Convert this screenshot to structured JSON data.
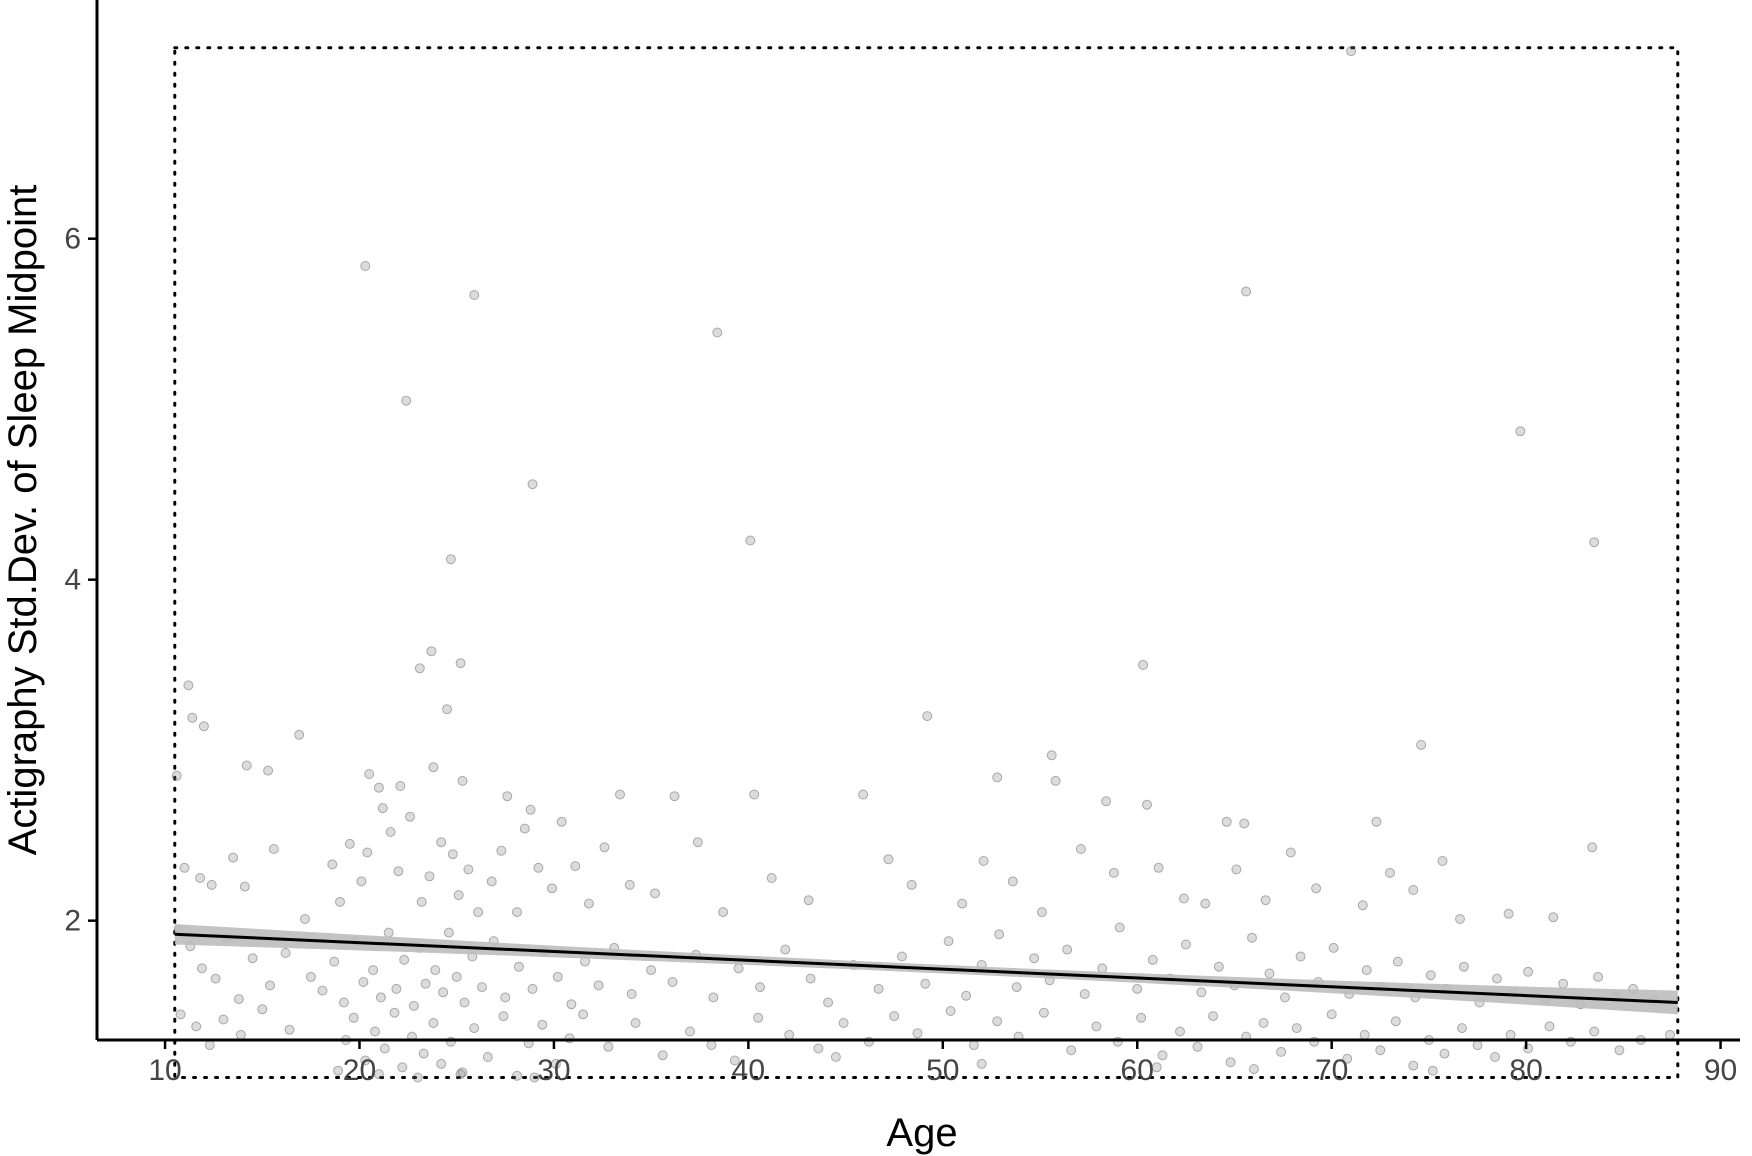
{
  "chart_data": {
    "type": "scatter",
    "title": "",
    "xlabel": "Age",
    "ylabel": "Actigraphy Std.Dev. of Sleep Midpoint",
    "xlim": [
      6.5,
      91
    ],
    "ylim": [
      1.3,
      7.4
    ],
    "x_ticks": [
      10,
      20,
      30,
      40,
      50,
      60,
      70,
      80,
      90
    ],
    "y_ticks": [
      2,
      4,
      6
    ],
    "grid": false,
    "legend": "none",
    "colors": {
      "points": "#808080",
      "points_stroke": "#555555",
      "fit_line": "#000000",
      "confidence_band": "#bdbdbd",
      "axis": "#000000",
      "tick_label": "#444444",
      "dotted_box": "#000000"
    },
    "regression": {
      "x": [
        10.5,
        87.8
      ],
      "y": [
        1.92,
        1.52
      ],
      "ci_halfwidth_ends": [
        0.06,
        0.07
      ],
      "ci_halfwidth_mid": 0.025
    },
    "reference_box": {
      "x": [
        10.5,
        87.8
      ],
      "y": [
        1.08,
        7.12
      ]
    },
    "points": [
      [
        20.3,
        5.84
      ],
      [
        25.9,
        5.67
      ],
      [
        22.4,
        5.05
      ],
      [
        38.4,
        5.45
      ],
      [
        65.6,
        5.69
      ],
      [
        79.7,
        4.87
      ],
      [
        40.1,
        4.23
      ],
      [
        28.9,
        4.56
      ],
      [
        24.7,
        4.12
      ],
      [
        83.5,
        4.22
      ],
      [
        71.0,
        7.1
      ],
      [
        23.7,
        3.58
      ],
      [
        25.2,
        3.51
      ],
      [
        24.5,
        3.24
      ],
      [
        23.1,
        3.48
      ],
      [
        11.2,
        3.38
      ],
      [
        11.4,
        3.19
      ],
      [
        12.0,
        3.14
      ],
      [
        16.9,
        3.09
      ],
      [
        60.3,
        3.5
      ],
      [
        49.2,
        3.2
      ],
      [
        55.6,
        2.97
      ],
      [
        74.6,
        3.03
      ],
      [
        14.2,
        2.91
      ],
      [
        15.3,
        2.88
      ],
      [
        20.5,
        2.86
      ],
      [
        21.0,
        2.78
      ],
      [
        22.1,
        2.79
      ],
      [
        23.8,
        2.9
      ],
      [
        25.3,
        2.82
      ],
      [
        27.6,
        2.73
      ],
      [
        28.8,
        2.65
      ],
      [
        33.4,
        2.74
      ],
      [
        36.2,
        2.73
      ],
      [
        40.3,
        2.74
      ],
      [
        45.9,
        2.74
      ],
      [
        52.8,
        2.84
      ],
      [
        55.8,
        2.82
      ],
      [
        58.4,
        2.7
      ],
      [
        60.5,
        2.68
      ],
      [
        64.6,
        2.58
      ],
      [
        65.5,
        2.57
      ],
      [
        72.3,
        2.58
      ],
      [
        10.6,
        2.85
      ],
      [
        11.0,
        2.31
      ],
      [
        11.8,
        2.25
      ],
      [
        12.4,
        2.21
      ],
      [
        13.5,
        2.37
      ],
      [
        14.1,
        2.2
      ],
      [
        15.6,
        2.42
      ],
      [
        17.2,
        2.01
      ],
      [
        18.6,
        2.33
      ],
      [
        19.0,
        2.11
      ],
      [
        19.5,
        2.45
      ],
      [
        20.1,
        2.23
      ],
      [
        20.4,
        2.4
      ],
      [
        21.2,
        2.66
      ],
      [
        21.6,
        2.52
      ],
      [
        22.0,
        2.29
      ],
      [
        22.6,
        2.61
      ],
      [
        23.2,
        2.11
      ],
      [
        23.6,
        2.26
      ],
      [
        24.2,
        2.46
      ],
      [
        24.8,
        2.39
      ],
      [
        25.1,
        2.15
      ],
      [
        25.6,
        2.3
      ],
      [
        26.1,
        2.05
      ],
      [
        26.8,
        2.23
      ],
      [
        27.3,
        2.41
      ],
      [
        28.1,
        2.05
      ],
      [
        28.5,
        2.54
      ],
      [
        29.2,
        2.31
      ],
      [
        29.9,
        2.19
      ],
      [
        30.4,
        2.58
      ],
      [
        31.1,
        2.32
      ],
      [
        31.8,
        2.1
      ],
      [
        32.6,
        2.43
      ],
      [
        33.9,
        2.21
      ],
      [
        35.2,
        2.16
      ],
      [
        37.4,
        2.46
      ],
      [
        38.7,
        2.05
      ],
      [
        41.2,
        2.25
      ],
      [
        43.1,
        2.12
      ],
      [
        47.2,
        2.36
      ],
      [
        48.4,
        2.21
      ],
      [
        51.0,
        2.1
      ],
      [
        52.1,
        2.35
      ],
      [
        53.6,
        2.23
      ],
      [
        55.1,
        2.05
      ],
      [
        57.1,
        2.42
      ],
      [
        58.8,
        2.28
      ],
      [
        61.1,
        2.31
      ],
      [
        62.4,
        2.13
      ],
      [
        63.5,
        2.1
      ],
      [
        65.1,
        2.3
      ],
      [
        66.6,
        2.12
      ],
      [
        67.9,
        2.4
      ],
      [
        69.2,
        2.19
      ],
      [
        71.6,
        2.09
      ],
      [
        73.0,
        2.28
      ],
      [
        74.2,
        2.18
      ],
      [
        75.7,
        2.35
      ],
      [
        76.6,
        2.01
      ],
      [
        79.1,
        2.04
      ],
      [
        81.4,
        2.02
      ],
      [
        83.4,
        2.43
      ],
      [
        10.7,
        1.95
      ],
      [
        11.3,
        1.85
      ],
      [
        11.9,
        1.72
      ],
      [
        12.6,
        1.66
      ],
      [
        13.2,
        1.9
      ],
      [
        13.8,
        1.54
      ],
      [
        14.5,
        1.78
      ],
      [
        15.4,
        1.62
      ],
      [
        16.2,
        1.81
      ],
      [
        17.5,
        1.67
      ],
      [
        18.1,
        1.59
      ],
      [
        18.7,
        1.76
      ],
      [
        19.2,
        1.52
      ],
      [
        19.8,
        1.88
      ],
      [
        20.2,
        1.64
      ],
      [
        20.7,
        1.71
      ],
      [
        21.1,
        1.55
      ],
      [
        21.5,
        1.93
      ],
      [
        21.9,
        1.6
      ],
      [
        22.3,
        1.77
      ],
      [
        22.8,
        1.5
      ],
      [
        23.1,
        1.84
      ],
      [
        23.4,
        1.63
      ],
      [
        23.9,
        1.71
      ],
      [
        24.3,
        1.58
      ],
      [
        24.6,
        1.93
      ],
      [
        25.0,
        1.67
      ],
      [
        25.4,
        1.52
      ],
      [
        25.8,
        1.79
      ],
      [
        26.3,
        1.61
      ],
      [
        26.9,
        1.88
      ],
      [
        27.5,
        1.55
      ],
      [
        28.2,
        1.73
      ],
      [
        28.9,
        1.6
      ],
      [
        29.5,
        1.82
      ],
      [
        30.2,
        1.67
      ],
      [
        30.9,
        1.51
      ],
      [
        31.6,
        1.76
      ],
      [
        32.3,
        1.62
      ],
      [
        33.1,
        1.84
      ],
      [
        34.0,
        1.57
      ],
      [
        35.0,
        1.71
      ],
      [
        36.1,
        1.64
      ],
      [
        37.3,
        1.8
      ],
      [
        38.2,
        1.55
      ],
      [
        39.5,
        1.72
      ],
      [
        40.6,
        1.61
      ],
      [
        41.9,
        1.83
      ],
      [
        43.2,
        1.66
      ],
      [
        44.1,
        1.52
      ],
      [
        45.4,
        1.74
      ],
      [
        46.7,
        1.6
      ],
      [
        47.9,
        1.79
      ],
      [
        49.1,
        1.63
      ],
      [
        50.3,
        1.88
      ],
      [
        51.2,
        1.56
      ],
      [
        52.0,
        1.74
      ],
      [
        52.9,
        1.92
      ],
      [
        53.8,
        1.61
      ],
      [
        54.7,
        1.78
      ],
      [
        55.5,
        1.65
      ],
      [
        56.4,
        1.83
      ],
      [
        57.3,
        1.57
      ],
      [
        58.2,
        1.72
      ],
      [
        59.1,
        1.96
      ],
      [
        60.0,
        1.6
      ],
      [
        60.8,
        1.77
      ],
      [
        61.7,
        1.66
      ],
      [
        62.5,
        1.86
      ],
      [
        63.3,
        1.58
      ],
      [
        64.2,
        1.73
      ],
      [
        65.0,
        1.62
      ],
      [
        65.9,
        1.9
      ],
      [
        66.8,
        1.69
      ],
      [
        67.6,
        1.55
      ],
      [
        68.4,
        1.79
      ],
      [
        69.3,
        1.64
      ],
      [
        70.1,
        1.84
      ],
      [
        70.9,
        1.57
      ],
      [
        71.8,
        1.71
      ],
      [
        72.6,
        1.61
      ],
      [
        73.4,
        1.76
      ],
      [
        74.3,
        1.55
      ],
      [
        75.1,
        1.68
      ],
      [
        75.9,
        1.6
      ],
      [
        76.8,
        1.73
      ],
      [
        77.6,
        1.52
      ],
      [
        78.5,
        1.66
      ],
      [
        79.3,
        1.58
      ],
      [
        80.1,
        1.7
      ],
      [
        81.0,
        1.54
      ],
      [
        81.9,
        1.63
      ],
      [
        82.8,
        1.51
      ],
      [
        83.7,
        1.67
      ],
      [
        84.6,
        1.55
      ],
      [
        85.5,
        1.6
      ],
      [
        86.6,
        1.53
      ],
      [
        10.8,
        1.45
      ],
      [
        11.6,
        1.38
      ],
      [
        12.3,
        1.27
      ],
      [
        13.0,
        1.42
      ],
      [
        13.9,
        1.33
      ],
      [
        15.0,
        1.48
      ],
      [
        16.4,
        1.36
      ],
      [
        18.9,
        1.12
      ],
      [
        19.3,
        1.3
      ],
      [
        19.7,
        1.43
      ],
      [
        20.3,
        1.18
      ],
      [
        20.8,
        1.35
      ],
      [
        21.3,
        1.25
      ],
      [
        21.8,
        1.46
      ],
      [
        22.2,
        1.14
      ],
      [
        22.7,
        1.32
      ],
      [
        23.3,
        1.22
      ],
      [
        23.8,
        1.4
      ],
      [
        24.2,
        1.16
      ],
      [
        24.7,
        1.29
      ],
      [
        25.3,
        1.11
      ],
      [
        25.9,
        1.37
      ],
      [
        26.6,
        1.2
      ],
      [
        27.4,
        1.44
      ],
      [
        28.1,
        1.09
      ],
      [
        28.7,
        1.28
      ],
      [
        29.4,
        1.39
      ],
      [
        30.1,
        1.16
      ],
      [
        30.8,
        1.31
      ],
      [
        31.5,
        1.45
      ],
      [
        32.8,
        1.26
      ],
      [
        34.2,
        1.4
      ],
      [
        35.6,
        1.21
      ],
      [
        37.0,
        1.35
      ],
      [
        38.1,
        1.27
      ],
      [
        39.3,
        1.18
      ],
      [
        40.5,
        1.43
      ],
      [
        42.1,
        1.33
      ],
      [
        43.6,
        1.25
      ],
      [
        44.9,
        1.4
      ],
      [
        46.2,
        1.29
      ],
      [
        47.5,
        1.44
      ],
      [
        48.7,
        1.34
      ],
      [
        50.4,
        1.47
      ],
      [
        51.6,
        1.27
      ],
      [
        52.8,
        1.41
      ],
      [
        53.9,
        1.32
      ],
      [
        55.2,
        1.46
      ],
      [
        56.6,
        1.24
      ],
      [
        57.9,
        1.38
      ],
      [
        59.0,
        1.29
      ],
      [
        60.2,
        1.43
      ],
      [
        61.3,
        1.21
      ],
      [
        62.2,
        1.35
      ],
      [
        63.1,
        1.26
      ],
      [
        63.9,
        1.44
      ],
      [
        64.8,
        1.17
      ],
      [
        65.6,
        1.32
      ],
      [
        66.5,
        1.4
      ],
      [
        67.4,
        1.23
      ],
      [
        68.2,
        1.37
      ],
      [
        69.1,
        1.29
      ],
      [
        70.0,
        1.45
      ],
      [
        70.8,
        1.19
      ],
      [
        71.7,
        1.33
      ],
      [
        72.5,
        1.24
      ],
      [
        73.3,
        1.41
      ],
      [
        74.2,
        1.15
      ],
      [
        75.0,
        1.3
      ],
      [
        75.8,
        1.22
      ],
      [
        76.7,
        1.37
      ],
      [
        77.5,
        1.27
      ],
      [
        78.4,
        1.2
      ],
      [
        79.2,
        1.33
      ],
      [
        80.1,
        1.25
      ],
      [
        81.2,
        1.38
      ],
      [
        82.3,
        1.29
      ],
      [
        83.5,
        1.35
      ],
      [
        84.8,
        1.24
      ],
      [
        85.9,
        1.3
      ],
      [
        87.4,
        1.33
      ],
      [
        21.0,
        1.1
      ],
      [
        23.0,
        1.08
      ],
      [
        25.2,
        1.1
      ],
      [
        29.0,
        1.08
      ],
      [
        75.2,
        1.12
      ],
      [
        61.0,
        1.14
      ],
      [
        66.0,
        1.13
      ],
      [
        52.0,
        1.16
      ],
      [
        44.5,
        1.2
      ]
    ]
  }
}
